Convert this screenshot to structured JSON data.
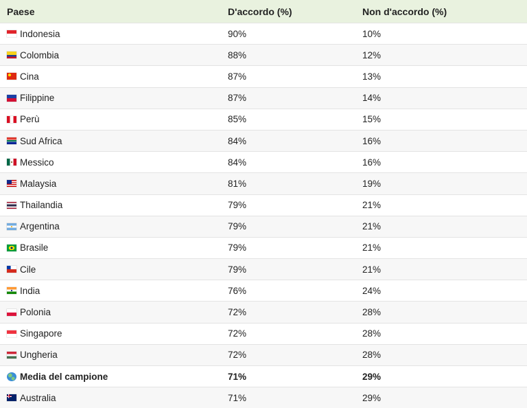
{
  "chart_data": {
    "type": "table",
    "columns": [
      "Paese",
      "D'accordo (%)",
      "Non d'accordo (%)"
    ],
    "rows": [
      {
        "country": "Indonesia",
        "agree": "90%",
        "disagree": "10%",
        "flag": "indonesia-flag-icon",
        "highlight": false
      },
      {
        "country": "Colombia",
        "agree": "88%",
        "disagree": "12%",
        "flag": "colombia-flag-icon",
        "highlight": false
      },
      {
        "country": "Cina",
        "agree": "87%",
        "disagree": "13%",
        "flag": "china-flag-icon",
        "highlight": false
      },
      {
        "country": "Filippine",
        "agree": "87%",
        "disagree": "14%",
        "flag": "philippines-flag-icon",
        "highlight": false
      },
      {
        "country": "Perù",
        "agree": "85%",
        "disagree": "15%",
        "flag": "peru-flag-icon",
        "highlight": false
      },
      {
        "country": "Sud Africa",
        "agree": "84%",
        "disagree": "16%",
        "flag": "south-africa-flag-icon",
        "highlight": false
      },
      {
        "country": "Messico",
        "agree": "84%",
        "disagree": "16%",
        "flag": "mexico-flag-icon",
        "highlight": false
      },
      {
        "country": "Malaysia",
        "agree": "81%",
        "disagree": "19%",
        "flag": "malaysia-flag-icon",
        "highlight": false
      },
      {
        "country": "Thailandia",
        "agree": "79%",
        "disagree": "21%",
        "flag": "thailand-flag-icon",
        "highlight": false
      },
      {
        "country": "Argentina",
        "agree": "79%",
        "disagree": "21%",
        "flag": "argentina-flag-icon",
        "highlight": false
      },
      {
        "country": "Brasile",
        "agree": "79%",
        "disagree": "21%",
        "flag": "brazil-flag-icon",
        "highlight": false
      },
      {
        "country": "Cile",
        "agree": "79%",
        "disagree": "21%",
        "flag": "chile-flag-icon",
        "highlight": false
      },
      {
        "country": "India",
        "agree": "76%",
        "disagree": "24%",
        "flag": "india-flag-icon",
        "highlight": false
      },
      {
        "country": "Polonia",
        "agree": "72%",
        "disagree": "28%",
        "flag": "poland-flag-icon",
        "highlight": false
      },
      {
        "country": "Singapore",
        "agree": "72%",
        "disagree": "28%",
        "flag": "singapore-flag-icon",
        "highlight": false
      },
      {
        "country": "Ungheria",
        "agree": "72%",
        "disagree": "28%",
        "flag": "hungary-flag-icon",
        "highlight": false
      },
      {
        "country": "Media del campione",
        "agree": "71%",
        "disagree": "29%",
        "flag": "globe-icon",
        "highlight": true
      },
      {
        "country": "Australia",
        "agree": "71%",
        "disagree": "29%",
        "flag": "australia-flag-icon",
        "highlight": false
      }
    ]
  },
  "colors": {
    "header_background": "#e9f2df",
    "alternate_row_background": "#f7f7f7",
    "row_divider": "#e3e3e3",
    "text": "#222222"
  }
}
